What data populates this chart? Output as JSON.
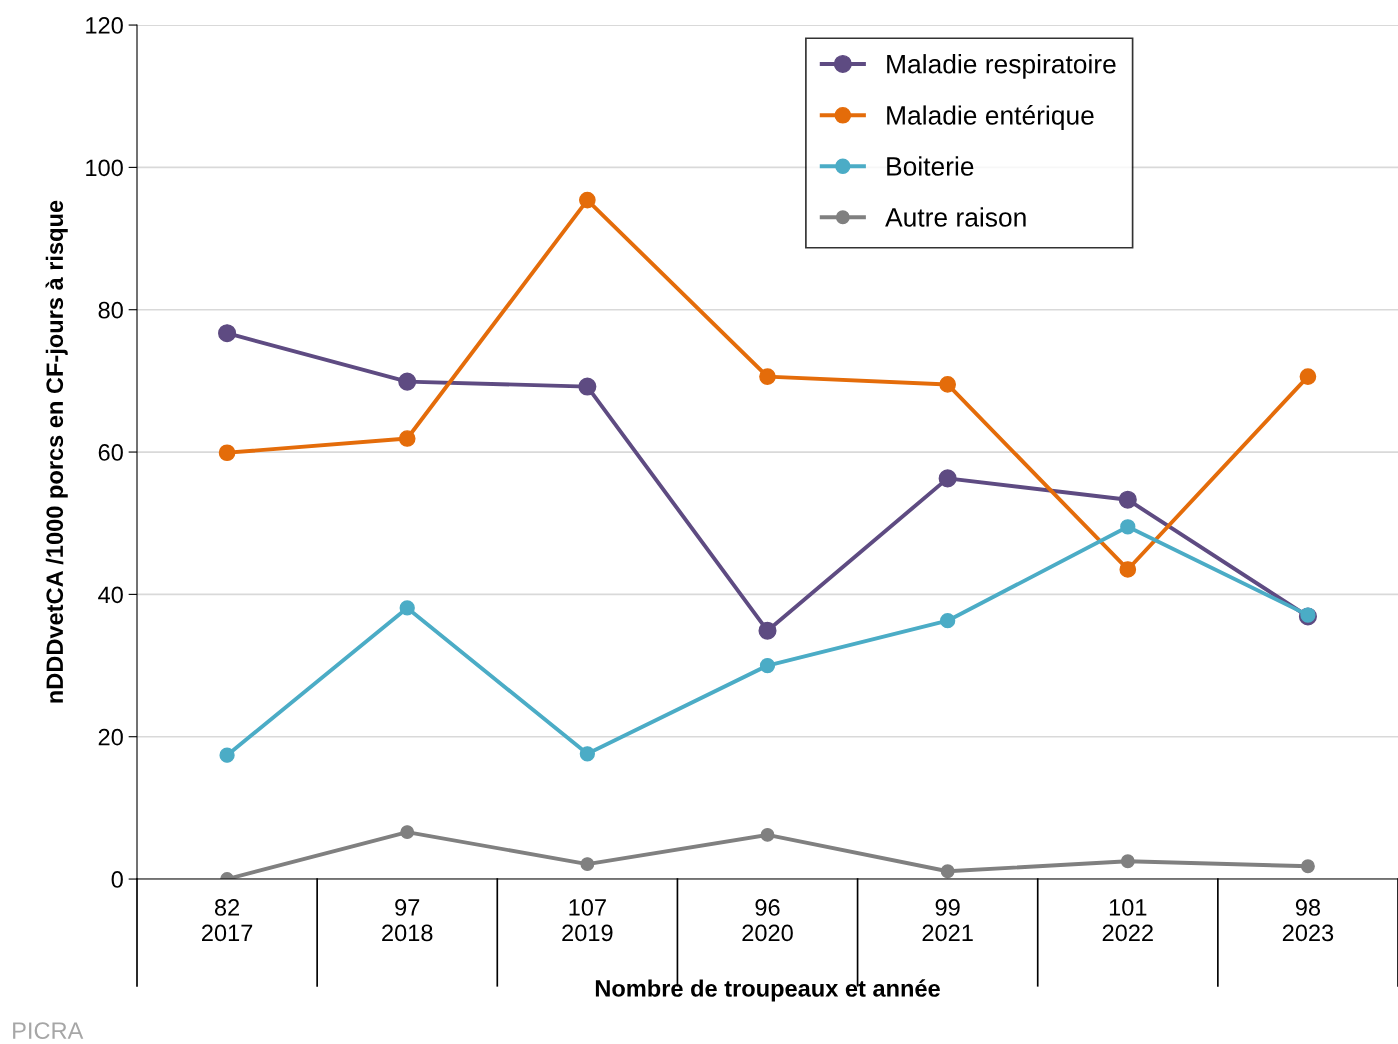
{
  "chart_data": {
    "type": "line",
    "xlabel": "Nombre de troupeaux et année",
    "ylabel": "nDDDvetCA /1000 porcs en CF-jours à risque",
    "categories": [
      "82\n2017",
      "97\n2018",
      "107\n2019",
      "96\n2020",
      "99\n2021",
      "101\n2022",
      "98\n2023"
    ],
    "series": [
      {
        "name": "Maladie respiratoire",
        "color": "#5e4b82",
        "values": [
          76.7,
          69.9,
          69.2,
          34.9,
          56.3,
          53.3,
          36.9
        ]
      },
      {
        "name": "Maladie entérique",
        "color": "#e46c0a",
        "values": [
          59.9,
          61.9,
          95.4,
          70.6,
          69.5,
          43.5,
          70.6
        ]
      },
      {
        "name": "Boiterie",
        "color": "#4bacc6",
        "values": [
          17.4,
          38.1,
          17.6,
          30.0,
          36.3,
          49.5,
          37.1
        ]
      },
      {
        "name": "Autre raison",
        "color": "#808080",
        "values": [
          0,
          6.6,
          2.1,
          6.2,
          1.1,
          2.5,
          1.8
        ]
      }
    ],
    "ylim": [
      0,
      120
    ],
    "yticks": [
      0,
      20,
      40,
      60,
      80,
      100,
      120
    ],
    "grid": "y",
    "legend": "top right",
    "marker": "circle",
    "line_style": "solid",
    "annotations": [
      "PICRA"
    ]
  }
}
